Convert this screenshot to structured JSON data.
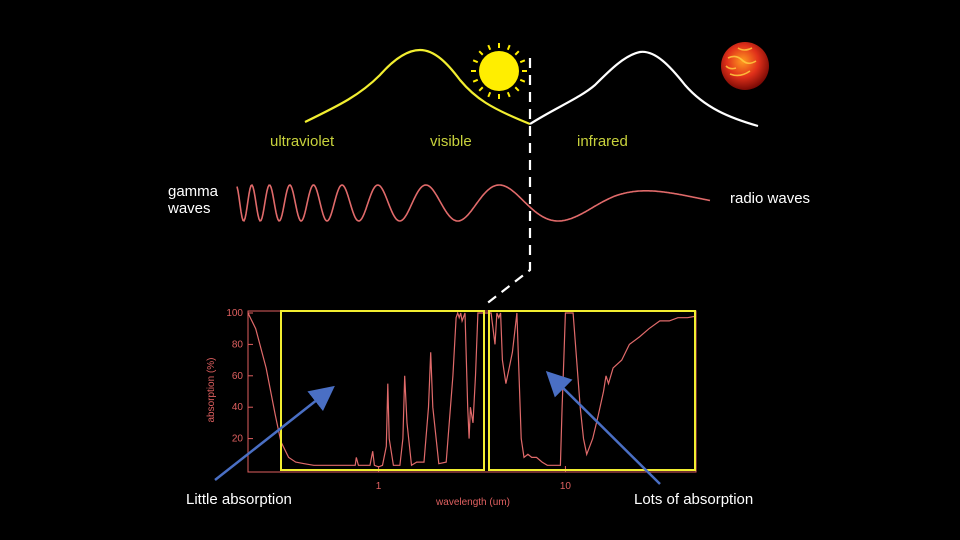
{
  "bands": {
    "ultraviolet": "ultraviolet",
    "visible": "visible",
    "infrared": "infrared"
  },
  "spectrum": {
    "gamma_line1": "gamma",
    "gamma_line2": "waves",
    "radio": "radio waves"
  },
  "callouts": {
    "little": "Little absorption",
    "lots": "Lots of absorption"
  },
  "icons": [
    "sun-icon",
    "hot-planet-icon",
    "arrow-icon"
  ],
  "colors": {
    "background": "#000000",
    "sun_curve": "#f2ee30",
    "planet_curve": "#ffffff",
    "wave": "#e06a6a",
    "band_label": "#c8d23c",
    "highlight_box": "#f2ee30",
    "arrow": "#4a6fc4"
  },
  "chart_data": {
    "type": "line",
    "xlabel": "wavelength (um)",
    "ylabel": "absorption (%)",
    "x_scale": "log",
    "xlim": [
      0.2,
      50
    ],
    "ylim": [
      0,
      100
    ],
    "x_ticks": [
      1,
      10
    ],
    "y_ticks": [
      20,
      40,
      60,
      80,
      100
    ],
    "series": [
      {
        "x": [
          0.2,
          0.22,
          0.25,
          0.28,
          0.3,
          0.33,
          0.36,
          0.4,
          0.45,
          0.5,
          0.6,
          0.7,
          0.75,
          0.76,
          0.78,
          0.85,
          0.9,
          0.93,
          0.95,
          1.0,
          1.05,
          1.1,
          1.12,
          1.14,
          1.2,
          1.3,
          1.35,
          1.38,
          1.42,
          1.5,
          1.6,
          1.75,
          1.85,
          1.9,
          1.95,
          2.1,
          2.3,
          2.5,
          2.6,
          2.65,
          2.7,
          2.75,
          2.8,
          2.9,
          3.0,
          3.05,
          3.1,
          3.2,
          3.3,
          3.4,
          3.6,
          3.8,
          4.0,
          4.2,
          4.3,
          4.4,
          4.5,
          4.6,
          4.8,
          5.0,
          5.2,
          5.5,
          5.8,
          6.0,
          6.3,
          6.6,
          7.0,
          7.5,
          8.0,
          8.5,
          9.0,
          9.4,
          9.6,
          9.8,
          10.0,
          10.5,
          11.0,
          12.0,
          12.5,
          13.0,
          14.0,
          15.0,
          16.0,
          16.5,
          17.0,
          18.0,
          20.0,
          22.0,
          25.0,
          28.0,
          32.0,
          36.0,
          40.0,
          45.0,
          50.0
        ],
        "y": [
          100,
          90,
          65,
          35,
          18,
          8,
          5,
          4,
          3,
          3,
          3,
          3,
          3,
          8,
          3,
          3,
          3,
          12,
          3,
          2,
          3,
          15,
          55,
          20,
          3,
          3,
          20,
          60,
          30,
          3,
          5,
          5,
          40,
          75,
          40,
          4,
          5,
          60,
          97,
          100,
          97,
          100,
          95,
          100,
          40,
          20,
          40,
          30,
          60,
          100,
          100,
          100,
          100,
          80,
          100,
          97,
          100,
          70,
          55,
          65,
          75,
          100,
          20,
          8,
          10,
          8,
          8,
          5,
          3,
          3,
          3,
          3,
          40,
          70,
          100,
          100,
          100,
          40,
          20,
          10,
          20,
          35,
          50,
          60,
          55,
          65,
          70,
          80,
          85,
          90,
          95,
          95,
          97,
          97,
          98
        ]
      }
    ]
  }
}
